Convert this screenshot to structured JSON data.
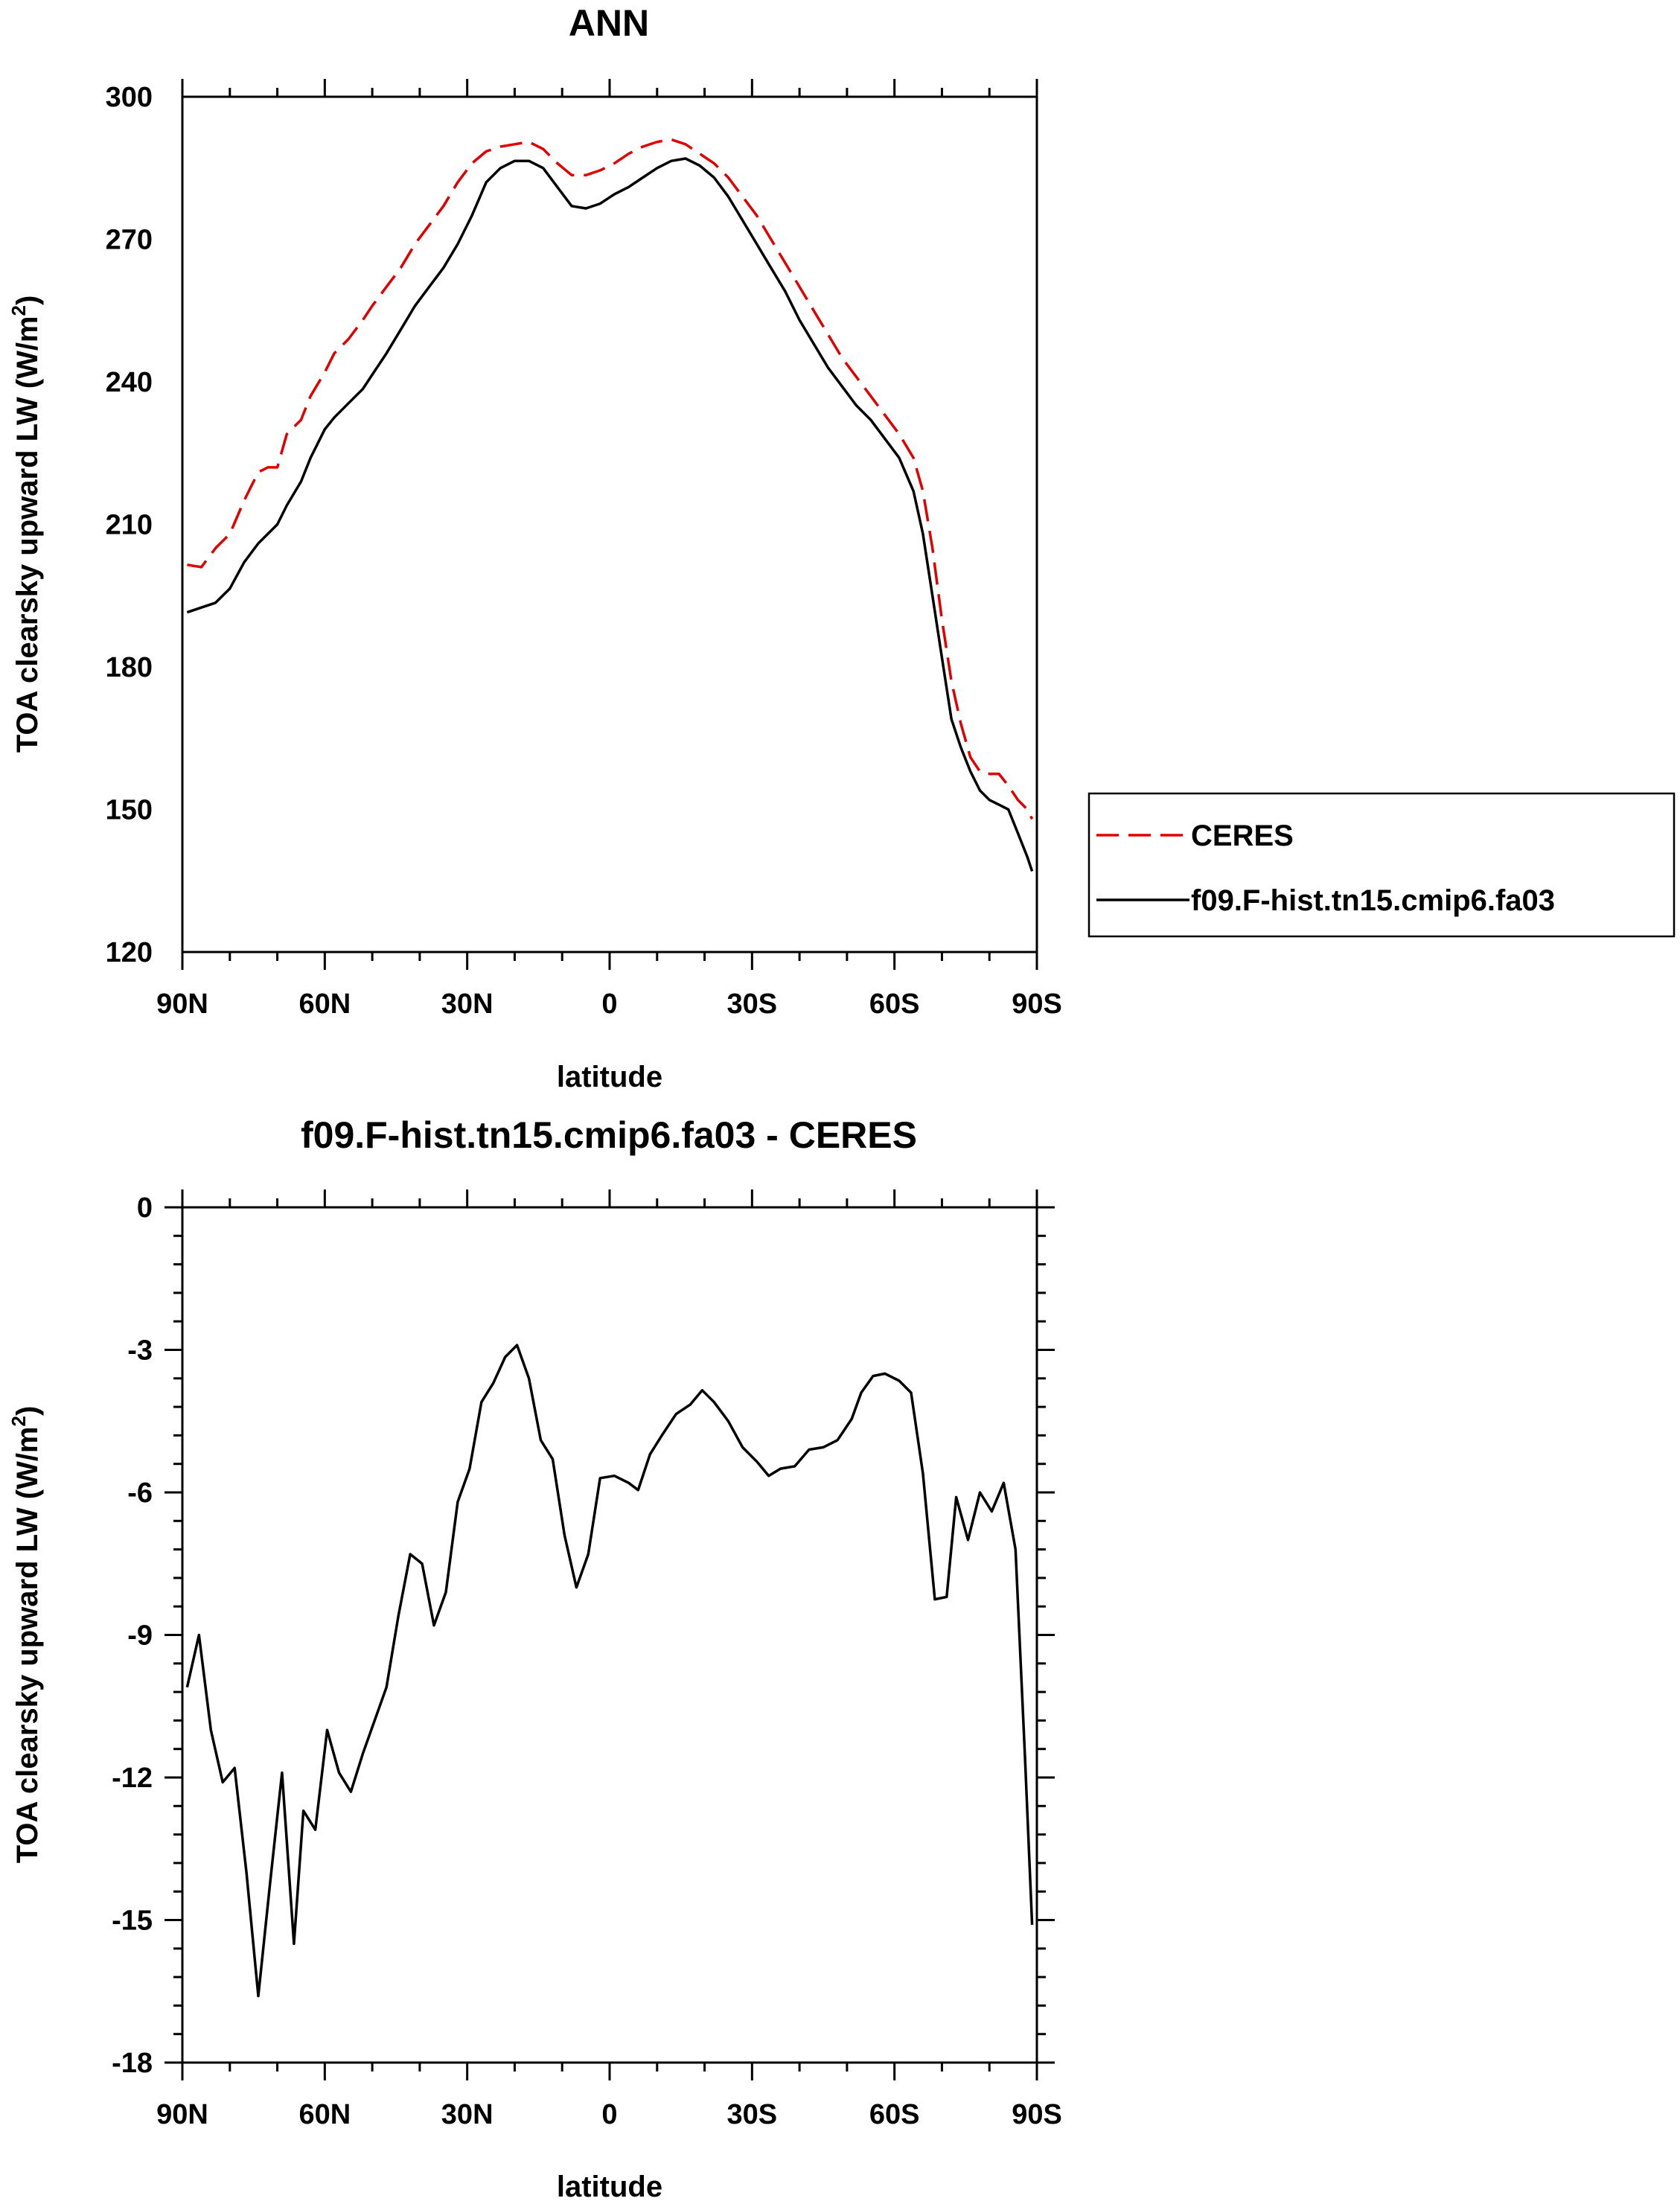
{
  "chart_data": [
    {
      "type": "line",
      "title": "ANN",
      "xlabel": "latitude",
      "ylabel": "TOA clearsky upward LW (W/m",
      "ylabel_sup": "2",
      "ylabel_close": ")",
      "xlim": [
        90,
        -90
      ],
      "ylim": [
        120,
        300
      ],
      "x_ticks": [
        90,
        60,
        30,
        0,
        -30,
        -60,
        -90
      ],
      "x_tick_labels": [
        "90N",
        "60N",
        "30N",
        "0",
        "30S",
        "60S",
        "90S"
      ],
      "y_ticks": [
        120,
        150,
        180,
        210,
        240,
        270,
        300
      ],
      "y_tick_labels": [
        "120",
        "150",
        "180",
        "210",
        "240",
        "270",
        "300"
      ],
      "legend_position": "right",
      "series": [
        {
          "name": "CERES",
          "color": "#e00000",
          "dash": "dashed",
          "x": [
            89,
            86,
            83,
            80,
            77,
            74,
            72,
            70,
            68,
            65,
            63,
            60,
            58,
            55,
            52,
            50,
            47,
            44,
            41,
            38,
            35,
            32,
            29,
            26,
            23,
            20,
            17,
            14,
            11,
            8,
            5,
            2,
            -1,
            -4,
            -7,
            -10,
            -13,
            -16,
            -19,
            -22,
            -25,
            -28,
            -31,
            -34,
            -37,
            -40,
            -43,
            -46,
            -49,
            -52,
            -55,
            -58,
            -61,
            -64,
            -66,
            -68,
            -70,
            -72,
            -74,
            -76,
            -78,
            -80,
            -82,
            -84,
            -86,
            -88,
            -89
          ],
          "y": [
            201.5,
            201,
            205,
            208,
            215,
            221,
            222,
            222,
            229,
            232,
            237,
            242,
            246,
            249,
            253,
            256,
            260,
            264,
            269,
            273,
            277,
            282,
            286,
            288.5,
            289.5,
            290,
            290.5,
            289,
            286,
            283.5,
            283.5,
            284.5,
            286,
            288,
            289.5,
            290.5,
            291,
            290,
            288,
            286,
            283,
            279,
            275,
            270,
            265,
            260,
            255,
            250,
            245,
            241,
            237,
            233,
            229,
            224,
            217,
            205,
            190,
            177,
            168,
            161,
            158,
            157.5,
            157.5,
            155,
            152,
            150,
            148
          ]
        },
        {
          "name": "f09.F-hist.tn15.cmip6.fa03",
          "color": "#000000",
          "dash": "solid",
          "x": [
            89,
            86,
            83,
            80,
            77,
            74,
            72,
            70,
            68,
            65,
            63,
            60,
            58,
            55,
            52,
            50,
            47,
            44,
            41,
            38,
            35,
            32,
            29,
            26,
            23,
            20,
            17,
            14,
            11,
            8,
            5,
            2,
            -1,
            -4,
            -7,
            -10,
            -13,
            -16,
            -19,
            -22,
            -25,
            -28,
            -31,
            -34,
            -37,
            -40,
            -43,
            -46,
            -49,
            -52,
            -55,
            -58,
            -61,
            -64,
            -66,
            -68,
            -70,
            -72,
            -74,
            -76,
            -78,
            -80,
            -82,
            -84,
            -86,
            -88,
            -89
          ],
          "y": [
            191.5,
            192.5,
            193.5,
            196.5,
            202,
            206,
            208,
            210,
            214,
            219,
            224,
            230,
            232.5,
            235.5,
            238.5,
            241.5,
            246,
            251,
            256,
            260,
            264,
            269,
            275,
            282,
            285,
            286.5,
            286.5,
            285,
            281,
            277,
            276.5,
            277.5,
            279.5,
            281,
            283,
            285,
            286.5,
            287,
            285.5,
            283,
            279,
            274,
            269,
            264,
            259,
            253,
            248,
            243,
            239,
            235,
            232,
            228,
            224,
            217,
            208,
            195,
            182,
            169,
            163,
            158,
            154,
            152,
            151,
            150,
            145,
            140,
            137
          ]
        }
      ]
    },
    {
      "type": "line",
      "title": "f09.F-hist.tn15.cmip6.fa03 - CERES",
      "xlabel": "latitude",
      "ylabel": "TOA clearsky upward LW (W/m",
      "ylabel_sup": "2",
      "ylabel_close": ")",
      "xlim": [
        90,
        -90
      ],
      "ylim": [
        -18,
        0
      ],
      "x_ticks": [
        90,
        60,
        30,
        0,
        -30,
        -60,
        -90
      ],
      "x_tick_labels": [
        "90N",
        "60N",
        "30N",
        "0",
        "30S",
        "60S",
        "90S"
      ],
      "y_ticks": [
        0,
        -3,
        -6,
        -9,
        -12,
        -15,
        -18
      ],
      "y_tick_labels": [
        "0",
        "-3",
        "-6",
        "-9",
        "-12",
        "-15",
        "-18"
      ],
      "series": [
        {
          "color": "#000000",
          "dash": "solid",
          "x": [
            89,
            86.5,
            84,
            81.5,
            79,
            76.5,
            74,
            71.5,
            69,
            66.5,
            64.5,
            62,
            59.5,
            57,
            54.5,
            52,
            49.5,
            47,
            44.5,
            42,
            39.5,
            37,
            34.5,
            32,
            29.5,
            27,
            24.5,
            22,
            19.5,
            17,
            14.5,
            12,
            9.5,
            7,
            4.5,
            2,
            -1,
            -4,
            -6,
            -8.5,
            -11,
            -14,
            -17,
            -19.5,
            -22,
            -25,
            -28,
            -31,
            -33.5,
            -36,
            -39,
            -42,
            -45,
            -48,
            -51,
            -53,
            -55.5,
            -58,
            -61,
            -63.5,
            -66,
            -68.5,
            -71,
            -73,
            -75.5,
            -78,
            -80.5,
            -83,
            -85.5,
            -87.5,
            -89
          ],
          "y": [
            -10.1,
            -9,
            -11,
            -12.1,
            -11.8,
            -14,
            -16.6,
            -14.2,
            -11.9,
            -15.5,
            -12.7,
            -13.1,
            -11,
            -11.9,
            -12.3,
            -11.5,
            -10.8,
            -10.1,
            -8.6,
            -7.3,
            -7.5,
            -8.8,
            -8.1,
            -6.2,
            -5.5,
            -4.1,
            -3.7,
            -3.15,
            -2.9,
            -3.6,
            -4.9,
            -5.3,
            -6.9,
            -8,
            -7.3,
            -5.7,
            -5.65,
            -5.8,
            -5.95,
            -5.2,
            -4.8,
            -4.35,
            -4.15,
            -3.85,
            -4.1,
            -4.5,
            -5.05,
            -5.35,
            -5.65,
            -5.5,
            -5.45,
            -5.1,
            -5.05,
            -4.9,
            -4.45,
            -3.9,
            -3.55,
            -3.5,
            -3.65,
            -3.9,
            -5.6,
            -8.25,
            -8.2,
            -6.1,
            -7,
            -6,
            -6.4,
            -5.8,
            -7.2,
            -11.6,
            -15.1
          ]
        }
      ]
    }
  ]
}
